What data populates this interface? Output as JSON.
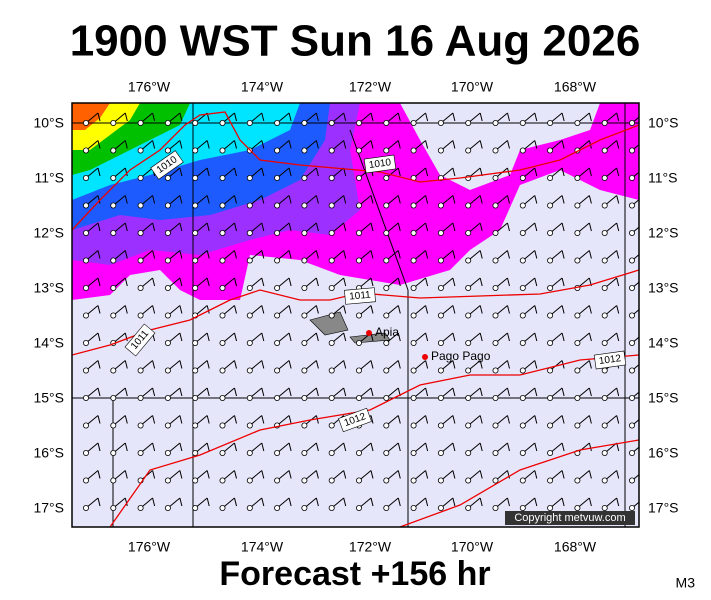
{
  "header": {
    "title": "1900 WST Sun 16 Aug 2026"
  },
  "axes": {
    "longitudes": [
      "176°W",
      "174°W",
      "172°W",
      "170°W",
      "168°W"
    ],
    "latitudes": [
      "10°S",
      "11°S",
      "12°S",
      "13°S",
      "14°S",
      "15°S",
      "16°S",
      "17°S"
    ]
  },
  "isobars": [
    "1010",
    "1010",
    "1011",
    "1011",
    "1012",
    "1012"
  ],
  "places": [
    "Apia",
    "Pago Pago"
  ],
  "copyright": "Copyright metvuw.com",
  "footer": {
    "forecast": "Forecast +156 hr",
    "model": "M3"
  }
}
